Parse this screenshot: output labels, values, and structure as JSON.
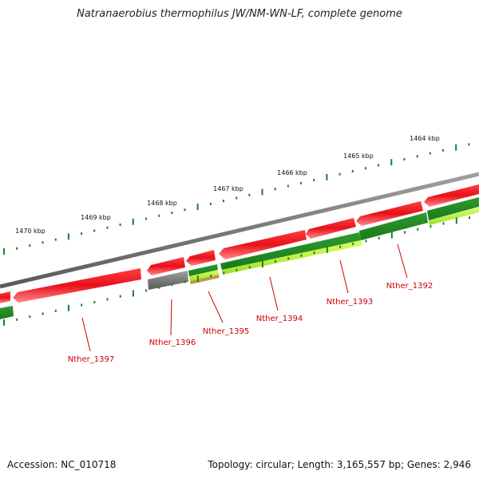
{
  "header": {
    "title": "Natranaerobius thermophilus JW/NM-WN-LF, complete genome"
  },
  "footer": {
    "accession": "Accession: NC_010718",
    "summary": "Topology: circular; Length: 3,165,557 bp; Genes: 2,946"
  },
  "ruler": {
    "labels": [
      "1464 kbp",
      "1465 kbp",
      "1466 kbp",
      "1467 kbp",
      "1468 kbp",
      "1469 kbp",
      "1470 kbp"
    ]
  },
  "genes": [
    {
      "label": "Nther_1392"
    },
    {
      "label": "Nther_1393"
    },
    {
      "label": "Nther_1394"
    },
    {
      "label": "Nther_1395"
    },
    {
      "label": "Nther_1396"
    },
    {
      "label": "Nther_1397"
    }
  ],
  "colors": {
    "forward_gene": "#e8101a",
    "forward_gene_light": "#ff8080",
    "backbone": "#7a7a7a",
    "gc_dark": "#1e8a1e",
    "gc_light": "#b6f23c",
    "gray_gene": "#666666",
    "tick": "#1f7f1f",
    "label": "#cc0000"
  }
}
